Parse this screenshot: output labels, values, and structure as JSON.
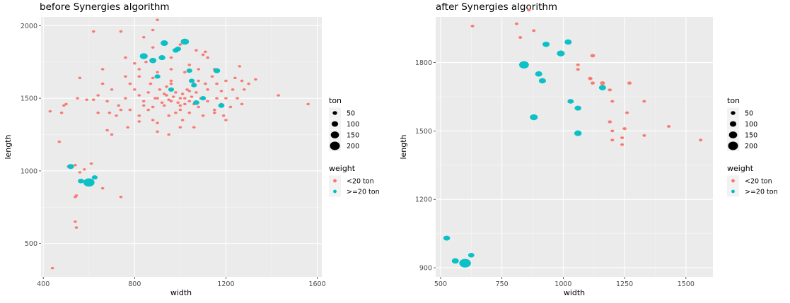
{
  "chart_data": [
    {
      "type": "scatter",
      "title": "before Synergies algorithm",
      "xlabel": "width",
      "ylabel": "length",
      "xlim": [
        390,
        1620
      ],
      "ylim": [
        270,
        2060
      ],
      "xticks": [
        "400",
        "800",
        "1200",
        "1600"
      ],
      "yticks": [
        "500",
        "1000",
        "1500",
        "2000"
      ],
      "xtick_values": [
        400,
        800,
        1200,
        1600
      ],
      "ytick_values": [
        500,
        1000,
        1500,
        2000
      ],
      "grid": true,
      "series": [
        {
          "name": "<20 ton",
          "color": "#F8766D",
          "points": [
            [
              430,
              1410
            ],
            [
              440,
              330
            ],
            [
              470,
              1200
            ],
            [
              480,
              1400
            ],
            [
              490,
              1450
            ],
            [
              500,
              1460
            ],
            [
              510,
              1030
            ],
            [
              540,
              1040
            ],
            [
              560,
              990
            ],
            [
              540,
              820
            ],
            [
              545,
              830
            ],
            [
              540,
              650
            ],
            [
              545,
              610
            ],
            [
              550,
              1500
            ],
            [
              560,
              1640
            ],
            [
              580,
              1010
            ],
            [
              590,
              1490
            ],
            [
              610,
              1050
            ],
            [
              620,
              1490
            ],
            [
              640,
              1520
            ],
            [
              660,
              880
            ],
            [
              680,
              1280
            ],
            [
              690,
              1400
            ],
            [
              700,
              1250
            ],
            [
              730,
              1450
            ],
            [
              740,
              820
            ],
            [
              770,
              1300
            ],
            [
              820,
              1380
            ],
            [
              760,
              1780
            ],
            [
              800,
              1740
            ],
            [
              820,
              1700
            ],
            [
              850,
              1750
            ],
            [
              880,
              1850
            ],
            [
              880,
              1970
            ],
            [
              900,
              2040
            ],
            [
              880,
              1640
            ],
            [
              900,
              1500
            ],
            [
              930,
              1450
            ],
            [
              940,
              1580
            ],
            [
              960,
              1620
            ],
            [
              980,
              1400
            ],
            [
              1000,
              1450
            ],
            [
              1020,
              1500
            ],
            [
              1040,
              1550
            ],
            [
              1060,
              1600
            ],
            [
              1080,
              1700
            ],
            [
              1100,
              1800
            ],
            [
              1110,
              1820
            ],
            [
              1120,
              1780
            ],
            [
              1140,
              1650
            ],
            [
              1160,
              1600
            ],
            [
              1180,
              1550
            ],
            [
              1200,
              1500
            ],
            [
              1230,
              1560
            ],
            [
              1260,
              1720
            ],
            [
              1270,
              1620
            ],
            [
              1300,
              1600
            ],
            [
              1330,
              1630
            ],
            [
              1430,
              1520
            ],
            [
              1560,
              1460
            ],
            [
              1200,
              1350
            ],
            [
              1150,
              1400
            ],
            [
              1100,
              1380
            ],
            [
              1060,
              1300
            ],
            [
              1000,
              1300
            ],
            [
              950,
              1250
            ],
            [
              900,
              1270
            ],
            [
              880,
              1350
            ],
            [
              860,
              1420
            ],
            [
              840,
              1480
            ],
            [
              820,
              1520
            ],
            [
              800,
              1560
            ],
            [
              780,
              1600
            ],
            [
              760,
              1500
            ],
            [
              740,
              1420
            ],
            [
              720,
              1380
            ],
            [
              700,
              1560
            ],
            [
              680,
              1480
            ],
            [
              660,
              1600
            ],
            [
              640,
              1400
            ],
            [
              760,
              1650
            ],
            [
              820,
              1650
            ],
            [
              900,
              1680
            ],
            [
              960,
              1700
            ],
            [
              1020,
              1680
            ],
            [
              1080,
              1620
            ],
            [
              1120,
              1560
            ],
            [
              1160,
              1500
            ],
            [
              1180,
              1460
            ],
            [
              1220,
              1440
            ],
            [
              1250,
              1500
            ],
            [
              1280,
              1560
            ],
            [
              940,
              1520
            ],
            [
              960,
              1480
            ],
            [
              980,
              1540
            ],
            [
              1000,
              1500
            ],
            [
              1020,
              1460
            ],
            [
              1040,
              1480
            ],
            [
              970,
              1510
            ],
            [
              990,
              1470
            ],
            [
              1010,
              1530
            ],
            [
              950,
              1490
            ],
            [
              930,
              1530
            ],
            [
              1050,
              1510
            ],
            [
              920,
              1470
            ],
            [
              1060,
              1460
            ],
            [
              890,
              1500
            ],
            [
              1070,
              1540
            ],
            [
              860,
              1540
            ],
            [
              1090,
              1500
            ],
            [
              910,
              1560
            ],
            [
              1030,
              1560
            ],
            [
              880,
              1440
            ],
            [
              1000,
              1420
            ],
            [
              960,
              1600
            ],
            [
              1080,
              1440
            ],
            [
              840,
              1450
            ],
            [
              1120,
              1480
            ],
            [
              870,
              1600
            ],
            [
              1110,
              1600
            ],
            [
              950,
              1380
            ],
            [
              1040,
              1400
            ],
            [
              780,
              1420
            ],
            [
              1150,
              1420
            ],
            [
              820,
              1340
            ],
            [
              1190,
              1380
            ],
            [
              900,
              1330
            ],
            [
              1010,
              1350
            ],
            [
              1270,
              1460
            ],
            [
              1240,
              1640
            ],
            [
              660,
              1700
            ],
            [
              620,
              1960
            ],
            [
              740,
              1960
            ],
            [
              840,
              1920
            ],
            [
              1070,
              1830
            ],
            [
              1000,
              1870
            ],
            [
              960,
              1780
            ],
            [
              1150,
              1700
            ],
            [
              1040,
              1730
            ],
            [
              1200,
              1620
            ]
          ]
        },
        {
          "name": ">=20 ton",
          "color": "#00BFC4",
          "points": [
            [
              520,
              1030
            ],
            [
              565,
              930
            ],
            [
              600,
              920
            ],
            [
              625,
              955
            ],
            [
              840,
              1790
            ],
            [
              880,
              1760
            ],
            [
              920,
              1780
            ],
            [
              930,
              1880
            ],
            [
              980,
              1830
            ],
            [
              1020,
              1890
            ],
            [
              990,
              1840
            ],
            [
              1040,
              1690
            ],
            [
              1060,
              1590
            ],
            [
              1070,
              1470
            ],
            [
              1100,
              1500
            ],
            [
              1160,
              1690
            ],
            [
              1180,
              1450
            ],
            [
              1050,
              1620
            ],
            [
              960,
              1560
            ],
            [
              900,
              1650
            ]
          ],
          "sizes": [
            40,
            35,
            110,
            30,
            55,
            45,
            40,
            50,
            35,
            60,
            35,
            30,
            30,
            35,
            30,
            40,
            35,
            30,
            30,
            30
          ]
        }
      ]
    },
    {
      "type": "scatter",
      "title": "after Synergies algorithm",
      "xlabel": "width",
      "ylabel": "length",
      "xlim": [
        480,
        1610
      ],
      "ylim": [
        860,
        2000
      ],
      "xticks": [
        "500",
        "750",
        "1000",
        "1250",
        "1500"
      ],
      "yticks": [
        "900",
        "1200",
        "1500",
        "1800"
      ],
      "xtick_values": [
        500,
        750,
        1000,
        1250,
        1500
      ],
      "ytick_values": [
        900,
        1200,
        1500,
        1800
      ],
      "grid": true,
      "series": [
        {
          "name": "<20 ton",
          "color": "#F8766D",
          "points": [
            [
              630,
              1960
            ],
            [
              810,
              1970
            ],
            [
              825,
              1910
            ],
            [
              880,
              1940
            ],
            [
              1060,
              1790
            ],
            [
              1060,
              1770
            ],
            [
              1120,
              1830
            ],
            [
              1110,
              1730
            ],
            [
              1120,
              1710
            ],
            [
              1160,
              1710
            ],
            [
              1190,
              1680
            ],
            [
              1200,
              1630
            ],
            [
              1190,
              1540
            ],
            [
              1200,
              1500
            ],
            [
              1200,
              1460
            ],
            [
              1240,
              1470
            ],
            [
              1240,
              1440
            ],
            [
              1250,
              1510
            ],
            [
              1260,
              1580
            ],
            [
              1270,
              1710
            ],
            [
              1330,
              1630
            ],
            [
              1330,
              1480
            ],
            [
              1430,
              1520
            ],
            [
              1560,
              1460
            ],
            [
              860,
              2030
            ]
          ],
          "sizes": [
            12,
            12,
            12,
            12,
            12,
            12,
            20,
            18,
            16,
            22,
            14,
            12,
            14,
            12,
            12,
            12,
            12,
            14,
            12,
            16,
            12,
            12,
            12,
            12,
            12
          ]
        },
        {
          "name": ">=20 ton",
          "color": "#00BFC4",
          "points": [
            [
              525,
              1030
            ],
            [
              560,
              930
            ],
            [
              600,
              920
            ],
            [
              625,
              955
            ],
            [
              840,
              1790
            ],
            [
              880,
              1560
            ],
            [
              900,
              1750
            ],
            [
              915,
              1720
            ],
            [
              930,
              1880
            ],
            [
              990,
              1840
            ],
            [
              1020,
              1890
            ],
            [
              1030,
              1630
            ],
            [
              1060,
              1600
            ],
            [
              1060,
              1490
            ],
            [
              1160,
              1690
            ]
          ],
          "sizes": [
            40,
            45,
            120,
            35,
            85,
            55,
            45,
            45,
            45,
            55,
            45,
            35,
            40,
            50,
            45
          ]
        }
      ]
    }
  ],
  "legend": {
    "size_title": "ton",
    "size_labels": [
      "50",
      "100",
      "150",
      "200"
    ],
    "color_title": "weight",
    "color_labels": [
      "<20 ton",
      ">=20 ton"
    ]
  }
}
